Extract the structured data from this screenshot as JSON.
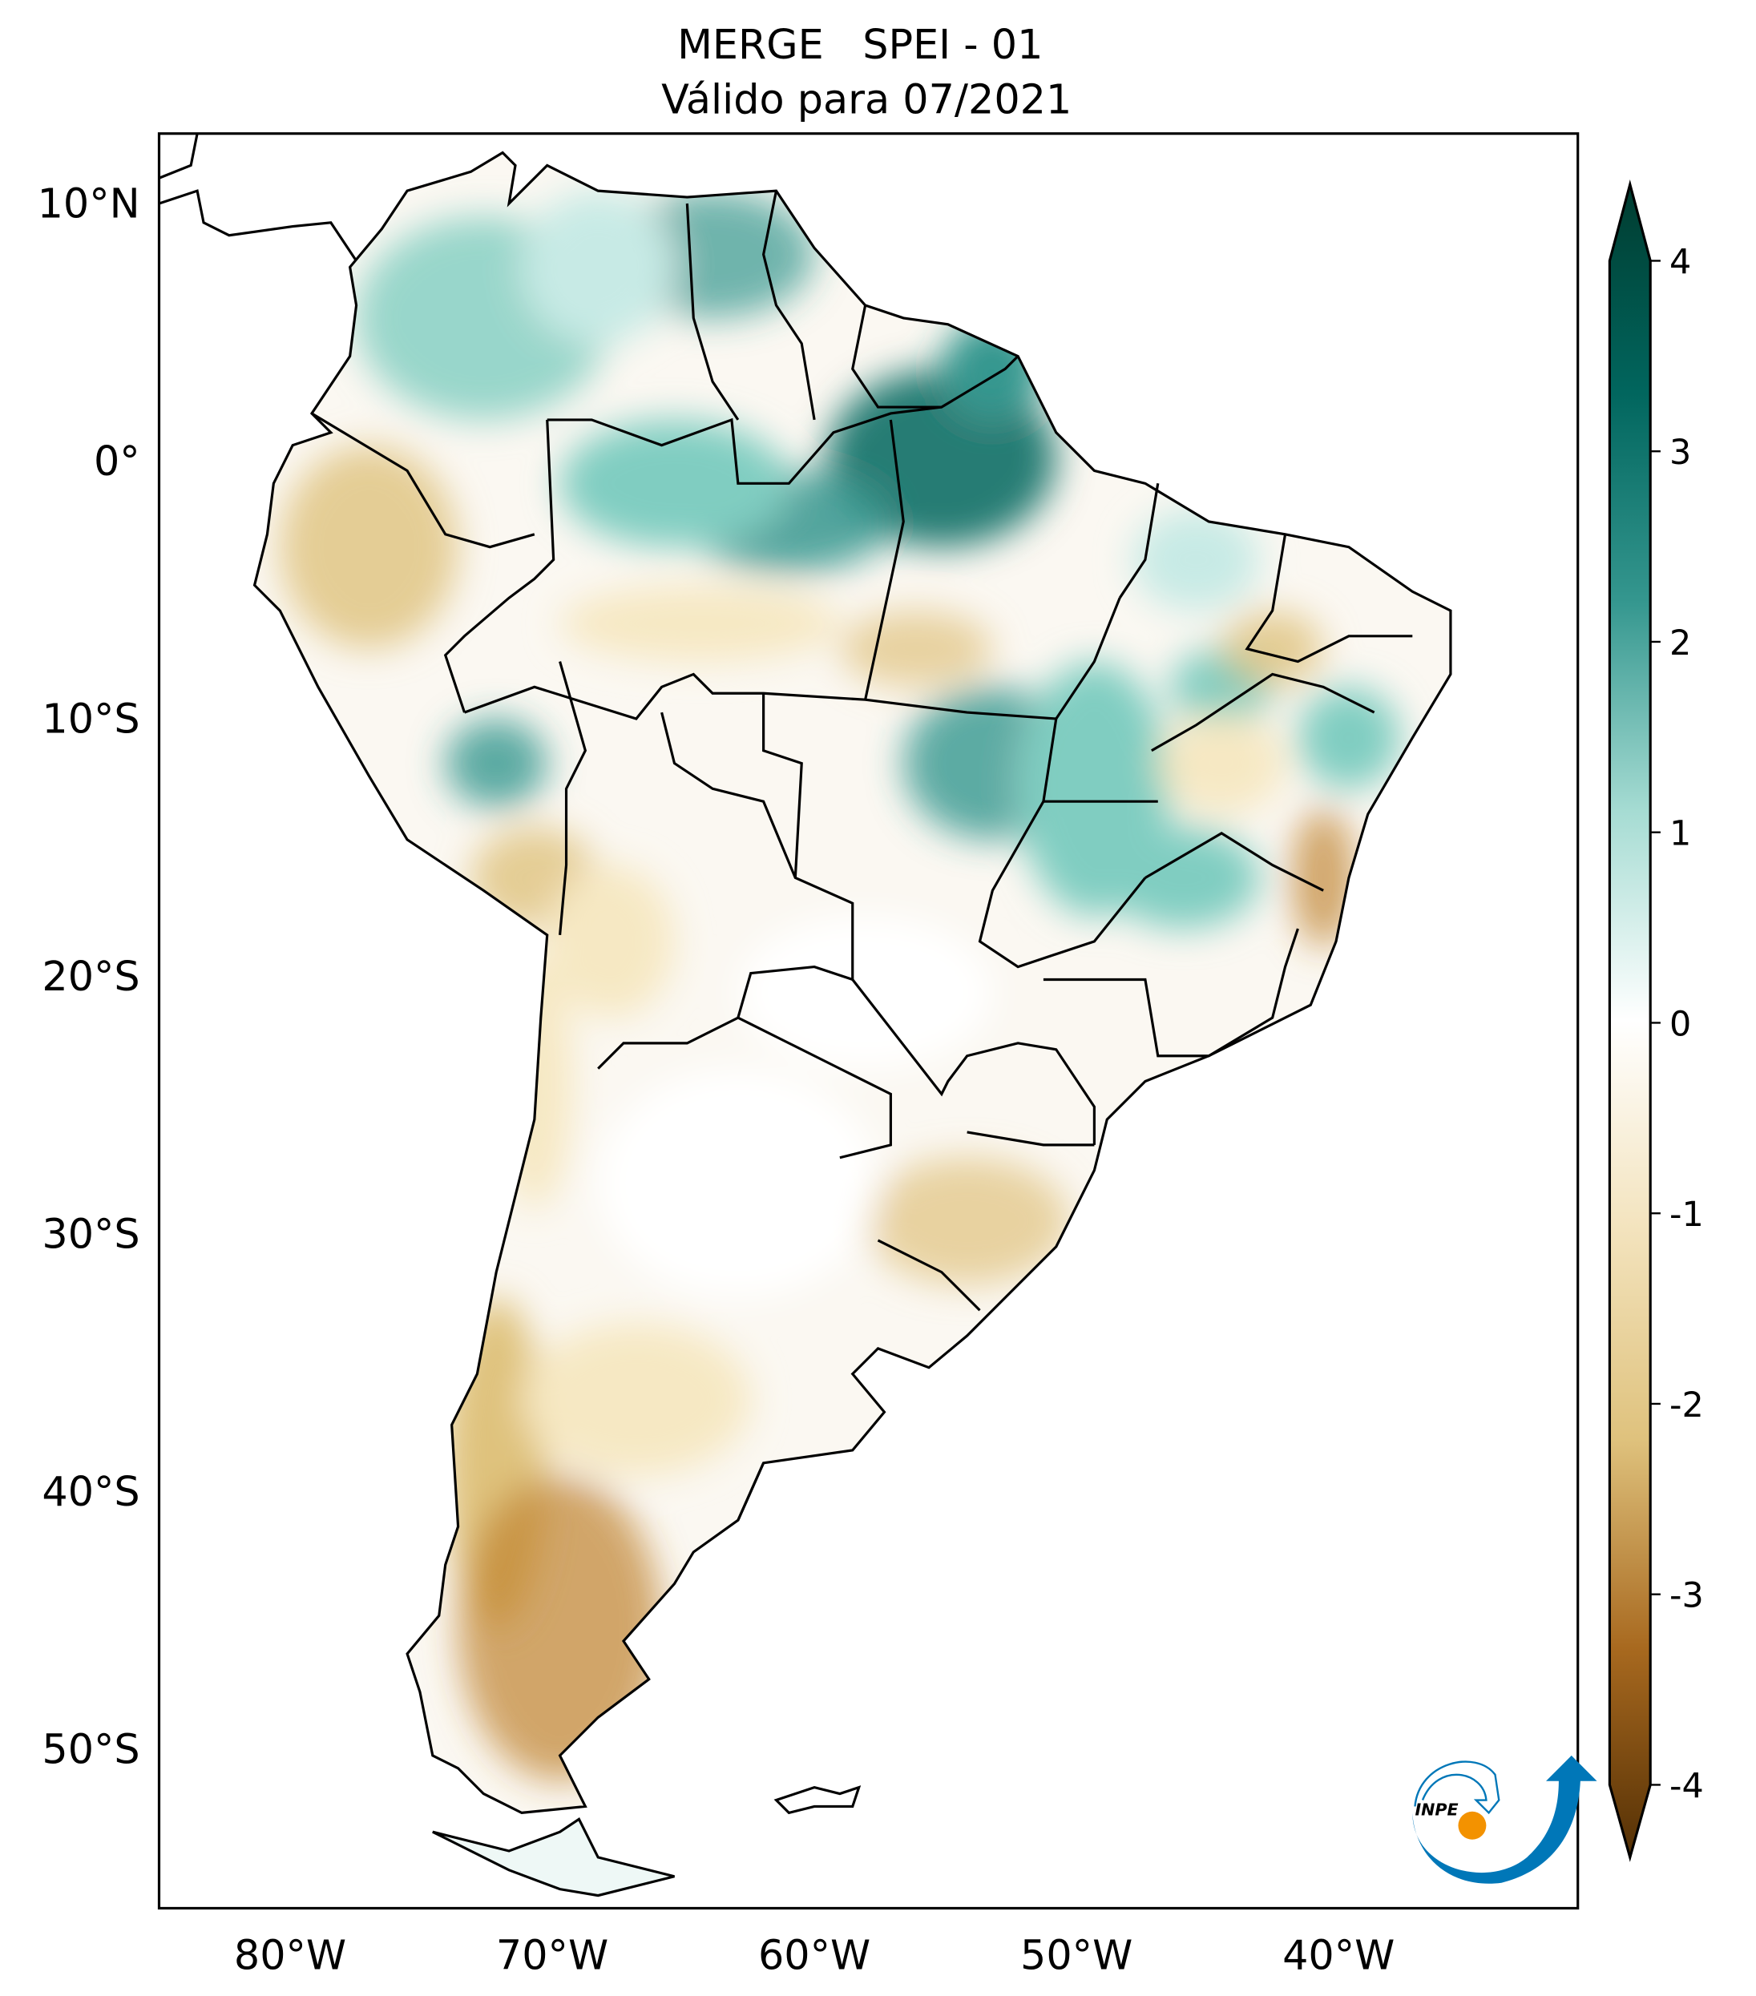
{
  "title": {
    "line1": "MERGE   SPEI - 01",
    "line2": "Válido para 07/2021"
  },
  "axes": {
    "lat_labels": [
      "10°N",
      "0°",
      "10°S",
      "20°S",
      "30°S",
      "40°S",
      "50°S"
    ],
    "lat_values": [
      10,
      0,
      -10,
      -20,
      -30,
      -40,
      -50
    ],
    "lon_labels": [
      "80°W",
      "70°W",
      "60°W",
      "50°W",
      "40°W"
    ],
    "lon_values": [
      -80,
      -70,
      -60,
      -50,
      -40
    ]
  },
  "colorbar": {
    "ticks": [
      "4",
      "3",
      "2",
      "1",
      "0",
      "-1",
      "-2",
      "-3",
      "-4"
    ],
    "tick_values": [
      4,
      3,
      2,
      1,
      0,
      -1,
      -2,
      -3,
      -4
    ],
    "range": [
      -4,
      4
    ],
    "extend": "both",
    "colors": {
      "max": "#003c30",
      "p3": "#01665e",
      "p2": "#35978f",
      "p1": "#c7eae5",
      "zero": "#ffffff",
      "m1": "#f6e8c3",
      "m2": "#dfc27d",
      "m3": "#bf812d",
      "min": "#543005"
    }
  },
  "logo": {
    "text": "INPE"
  }
}
